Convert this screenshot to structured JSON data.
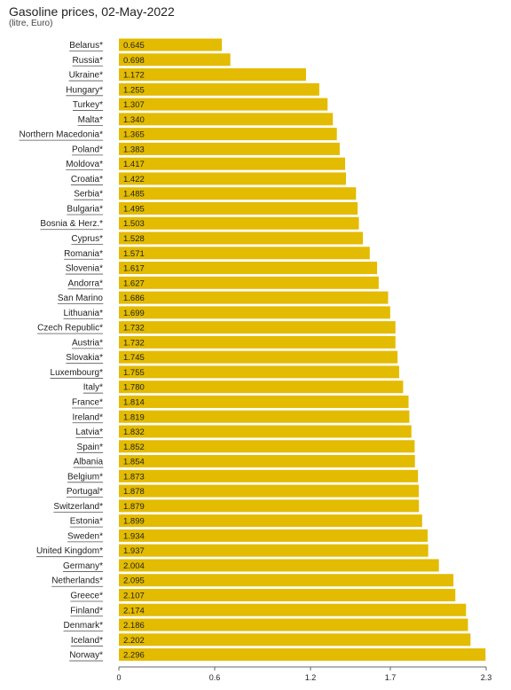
{
  "colors": {
    "bar": "#e3bb00",
    "underline": "#555555",
    "axis": "#666666"
  },
  "chart_data": {
    "type": "bar",
    "orientation": "horizontal",
    "title": "Gasoline prices, 02-May-2022",
    "subtitle": "(litre, Euro)",
    "xlim": [
      0,
      2.3
    ],
    "xticks": [
      "0",
      "0.6",
      "1.2",
      "1.7",
      "2.3"
    ],
    "xtick_values": [
      0,
      0.6,
      1.2,
      1.7,
      2.3
    ],
    "categories": [
      "Belarus*",
      "Russia*",
      "Ukraine*",
      "Hungary*",
      "Turkey*",
      "Malta*",
      "Northern Macedonia*",
      "Poland*",
      "Moldova*",
      "Croatia*",
      "Serbia*",
      "Bulgaria*",
      "Bosnia & Herz.*",
      "Cyprus*",
      "Romania*",
      "Slovenia*",
      "Andorra*",
      "San Marino",
      "Lithuania*",
      "Czech Republic*",
      "Austria*",
      "Slovakia*",
      "Luxembourg*",
      "Italy*",
      "France*",
      "Ireland*",
      "Latvia*",
      "Spain*",
      "Albania",
      "Belgium*",
      "Portugal*",
      "Switzerland*",
      "Estonia*",
      "Sweden*",
      "United Kingdom*",
      "Germany*",
      "Netherlands*",
      "Greece*",
      "Finland*",
      "Denmark*",
      "Iceland*",
      "Norway*"
    ],
    "values": [
      0.645,
      0.698,
      1.172,
      1.255,
      1.307,
      1.34,
      1.365,
      1.383,
      1.417,
      1.422,
      1.485,
      1.495,
      1.503,
      1.528,
      1.571,
      1.617,
      1.627,
      1.686,
      1.699,
      1.732,
      1.732,
      1.745,
      1.755,
      1.78,
      1.814,
      1.819,
      1.832,
      1.852,
      1.854,
      1.873,
      1.878,
      1.879,
      1.899,
      1.934,
      1.937,
      2.004,
      2.095,
      2.107,
      2.174,
      2.186,
      2.202,
      2.296
    ],
    "value_labels": [
      "0.645",
      "0.698",
      "1.172",
      "1.255",
      "1.307",
      "1.340",
      "1.365",
      "1.383",
      "1.417",
      "1.422",
      "1.485",
      "1.495",
      "1.503",
      "1.528",
      "1.571",
      "1.617",
      "1.627",
      "1.686",
      "1.699",
      "1.732",
      "1.732",
      "1.745",
      "1.755",
      "1.780",
      "1.814",
      "1.819",
      "1.832",
      "1.852",
      "1.854",
      "1.873",
      "1.878",
      "1.879",
      "1.899",
      "1.934",
      "1.937",
      "2.004",
      "2.095",
      "2.107",
      "2.174",
      "2.186",
      "2.202",
      "2.296"
    ]
  }
}
